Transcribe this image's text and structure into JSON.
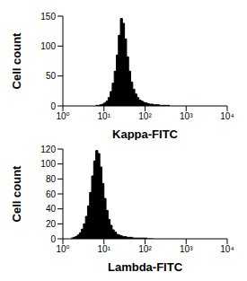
{
  "chart_data": [
    {
      "type": "histogram",
      "x_label": "Kappa-FITC",
      "y_label": "Cell count",
      "log": "x",
      "grid": false,
      "color": "#000000",
      "xlim": [
        1,
        10000
      ],
      "xticks": [
        {
          "value": 1,
          "label": "10⁰"
        },
        {
          "value": 10,
          "label": "10¹"
        },
        {
          "value": 100,
          "label": "10²"
        },
        {
          "value": 1000,
          "label": "10³"
        },
        {
          "value": 10000,
          "label": "10⁴"
        }
      ],
      "ylim": [
        0,
        150
      ],
      "yticks": [
        0,
        50,
        100,
        150
      ],
      "bins": [
        6.31,
        7.079,
        7.943,
        8.913,
        10,
        11.22,
        12.59,
        14.13,
        15.85,
        17.78,
        19.95,
        22.39,
        25.12,
        28.18,
        31.62,
        35.48,
        39.81,
        44.67,
        50.12,
        56.23,
        63.1,
        70.79,
        79.43,
        89.13,
        100,
        112.2,
        125.9,
        141.3,
        158.5,
        177.8,
        199.5,
        223.9,
        251.2,
        281.8,
        316.2,
        354.8,
        398.1
      ],
      "counts": [
        1,
        1,
        2,
        3,
        5,
        8,
        14,
        24,
        38,
        58,
        85,
        118,
        146,
        138,
        112,
        82,
        58,
        40,
        28,
        20,
        14,
        10,
        8,
        6,
        5,
        4,
        3,
        3,
        2,
        2,
        2,
        1,
        1,
        1,
        1,
        1
      ]
    },
    {
      "type": "histogram",
      "x_label": "Lambda-FITC",
      "y_label": "Cell count",
      "log": "x",
      "grid": false,
      "color": "#000000",
      "xlim": [
        1,
        10000
      ],
      "xticks": [
        {
          "value": 1,
          "label": "10⁰"
        },
        {
          "value": 10,
          "label": "10¹"
        },
        {
          "value": 100,
          "label": "10²"
        },
        {
          "value": 1000,
          "label": "10³"
        },
        {
          "value": 10000,
          "label": "10⁴"
        }
      ],
      "ylim": [
        0,
        120
      ],
      "yticks": [
        0,
        20,
        40,
        60,
        80,
        100,
        120
      ],
      "bins": [
        1.585,
        1.778,
        1.995,
        2.239,
        2.512,
        2.818,
        3.162,
        3.548,
        3.981,
        4.467,
        5.012,
        5.623,
        6.31,
        7.079,
        7.943,
        8.913,
        10,
        11.22,
        12.59,
        14.13,
        15.85,
        17.78,
        19.95,
        22.39,
        25.12,
        28.18,
        31.62,
        35.48,
        39.81,
        44.67,
        50.12,
        56.23,
        63.1,
        70.79,
        79.43,
        89.13,
        100,
        112.2,
        125.9,
        141.3,
        158.5
      ],
      "counts": [
        1,
        2,
        3,
        5,
        8,
        13,
        20,
        30,
        44,
        62,
        84,
        104,
        118,
        114,
        96,
        74,
        54,
        38,
        26,
        18,
        12,
        9,
        6,
        5,
        4,
        3,
        3,
        2,
        2,
        2,
        1,
        1,
        1,
        1,
        1,
        1,
        1,
        0,
        0,
        0
      ]
    }
  ]
}
